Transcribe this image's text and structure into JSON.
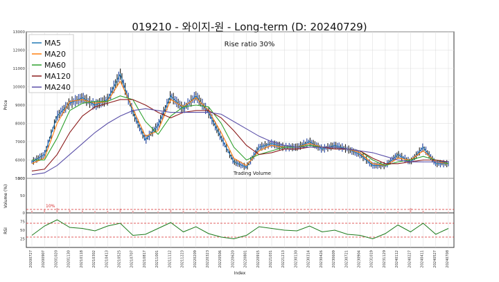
{
  "title": "019210 - 와이지-원 - Long-term (D: 20240729)",
  "annotation": "Rise ratio 30%",
  "volume_note": "Trading Volume",
  "threshold_label": "10%",
  "price_panel": {
    "ylabel": "Price",
    "ylim": [
      5000,
      13000
    ],
    "yticks": [
      5000,
      6000,
      7000,
      8000,
      9000,
      10000,
      11000,
      12000,
      13000
    ],
    "legend": [
      "MA5",
      "MA20",
      "MA60",
      "MA120",
      "MA240"
    ],
    "legend_colors": [
      "#1f77b4",
      "#ff7f0e",
      "#2ca02c",
      "#8b1a1a",
      "#5a4fa8"
    ]
  },
  "volume_panel": {
    "ylabel": "Volume (%)",
    "ylim": [
      0,
      100
    ],
    "yticks": [
      0,
      50,
      100
    ],
    "threshold": 10
  },
  "rsi_panel": {
    "ylabel": "RSI",
    "ylim": [
      0,
      100
    ],
    "yticks": [
      25,
      50,
      75
    ],
    "bands": [
      30,
      70
    ]
  },
  "xlabel": "Index",
  "x_dates": [
    "20200727",
    "20200907",
    "20201020",
    "20201130",
    "20210118",
    "20210302",
    "20210413",
    "20210525",
    "20210707",
    "20210817",
    "20211001",
    "20211112",
    "20211223",
    "20220209",
    "20220323",
    "20220506",
    "20220620",
    "20220801",
    "20220915",
    "20221031",
    "20221213",
    "20230130",
    "20230314",
    "20230426",
    "20230609",
    "20230721",
    "20230904",
    "20231019",
    "20231129",
    "20240112",
    "20240227",
    "20240411",
    "20240527",
    "20240708"
  ],
  "colors": {
    "grid": "#d9d9d9",
    "candle_up": "#1a1a1a",
    "candle_down": "#1f3f9e",
    "band": "#d62728",
    "rsi": "#1a7a1a",
    "volume": "#e3a7a7"
  },
  "chart_data": {
    "type": "line",
    "title": "019210 - 와이지-원 - Long-term (D: 20240729)",
    "xlabel": "Index",
    "ylabel": "Price",
    "x": [
      "20200727",
      "20200907",
      "20201020",
      "20201130",
      "20210118",
      "20210302",
      "20210413",
      "20210525",
      "20210707",
      "20210817",
      "20211001",
      "20211112",
      "20211223",
      "20220209",
      "20220323",
      "20220506",
      "20220620",
      "20220801",
      "20220915",
      "20221031",
      "20221213",
      "20230130",
      "20230314",
      "20230426",
      "20230609",
      "20230721",
      "20230904",
      "20231019",
      "20231129",
      "20240112",
      "20240227",
      "20240411",
      "20240527",
      "20240708"
    ],
    "series": [
      {
        "name": "MA5",
        "values": [
          5900,
          6300,
          8400,
          9100,
          9400,
          9000,
          9300,
          10700,
          8600,
          7100,
          7900,
          9500,
          8800,
          9500,
          8600,
          7200,
          5900,
          5600,
          6700,
          6900,
          6700,
          6700,
          7000,
          6600,
          6800,
          6600,
          6300,
          5700,
          5700,
          6300,
          5900,
          6700,
          5800,
          5800
        ]
      },
      {
        "name": "MA20",
        "values": [
          5800,
          6100,
          8000,
          9200,
          9300,
          9100,
          9200,
          10300,
          8800,
          7300,
          7600,
          9300,
          8900,
          9400,
          8700,
          7500,
          6100,
          5700,
          6500,
          6800,
          6700,
          6700,
          6900,
          6700,
          6700,
          6600,
          6400,
          5800,
          5700,
          6100,
          6000,
          6500,
          5900,
          5800
        ]
      },
      {
        "name": "MA60",
        "values": [
          6000,
          6000,
          7200,
          8700,
          9100,
          9200,
          9200,
          9500,
          9300,
          8100,
          7400,
          8400,
          8900,
          9000,
          8900,
          8000,
          6700,
          6000,
          6300,
          6500,
          6700,
          6700,
          6800,
          6700,
          6700,
          6600,
          6500,
          6000,
          5700,
          5900,
          6000,
          6200,
          6000,
          5800
        ]
      },
      {
        "name": "MA120",
        "values": [
          5400,
          5500,
          6300,
          7500,
          8400,
          8900,
          9100,
          9300,
          9300,
          9000,
          8600,
          8300,
          8600,
          8700,
          8700,
          8300,
          7600,
          6800,
          6300,
          6400,
          6600,
          6600,
          6700,
          6700,
          6600,
          6600,
          6500,
          6100,
          5800,
          5800,
          5900,
          6000,
          6000,
          5900
        ]
      },
      {
        "name": "MA240",
        "values": [
          5200,
          5300,
          5700,
          6300,
          6900,
          7500,
          8000,
          8400,
          8700,
          8800,
          8700,
          8600,
          8600,
          8600,
          8600,
          8500,
          8100,
          7700,
          7300,
          7000,
          6800,
          6700,
          6700,
          6700,
          6700,
          6600,
          6500,
          6400,
          6200,
          6000,
          5900,
          5900,
          5900,
          5900
        ]
      }
    ],
    "volume": [
      6,
      9,
      14,
      8,
      7,
      5,
      6,
      12,
      6,
      5,
      4,
      9,
      6,
      5,
      5,
      4,
      3,
      3,
      4,
      3,
      4,
      4,
      5,
      3,
      3,
      3,
      3,
      3,
      3,
      4,
      14,
      6,
      3,
      3
    ],
    "rsi": [
      35,
      62,
      80,
      58,
      55,
      48,
      62,
      70,
      35,
      38,
      55,
      72,
      45,
      60,
      40,
      30,
      25,
      35,
      60,
      55,
      50,
      48,
      62,
      45,
      50,
      38,
      35,
      25,
      40,
      65,
      45,
      70,
      38,
      55
    ],
    "ylim": [
      5000,
      13000
    ]
  }
}
